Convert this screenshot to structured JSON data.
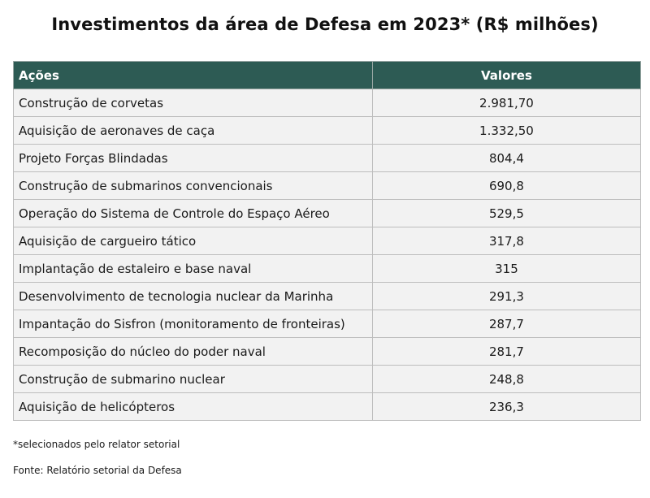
{
  "chart_data": {
    "type": "table",
    "title": "Investimentos da área de Defesa em 2023* (R$ milhões)",
    "columns": [
      "Ações",
      "Valores"
    ],
    "rows": [
      {
        "acao": "Construção de corvetas",
        "valor": "2.981,70"
      },
      {
        "acao": "Aquisição de aeronaves de caça",
        "valor": "1.332,50"
      },
      {
        "acao": "Projeto Forças Blindadas",
        "valor": "804,4"
      },
      {
        "acao": "Construção de submarinos convencionais",
        "valor": "690,8"
      },
      {
        "acao": "Operação do Sistema de Controle do Espaço Aéreo",
        "valor": "529,5"
      },
      {
        "acao": "Aquisição de cargueiro tático",
        "valor": "317,8"
      },
      {
        "acao": "Implantação de estaleiro e base naval",
        "valor": "315"
      },
      {
        "acao": "Desenvolvimento de tecnologia nuclear da Marinha",
        "valor": "291,3"
      },
      {
        "acao": "Impantação do Sisfron (monitoramento de fronteiras)",
        "valor": "287,7"
      },
      {
        "acao": "Recomposição do núcleo do poder naval",
        "valor": "281,7"
      },
      {
        "acao": "Construção de submarino nuclear",
        "valor": "248,8"
      },
      {
        "acao": "Aquisição de helicópteros",
        "valor": "236,3"
      }
    ],
    "note": "*selecionados pelo relator setorial",
    "source": "Fonte: Relatório setorial da Defesa"
  },
  "colors": {
    "header_bg": "#2d5b54",
    "header_text": "#ffffff",
    "row_bg": "#f2f2f2",
    "border": "#bdbdbd"
  }
}
